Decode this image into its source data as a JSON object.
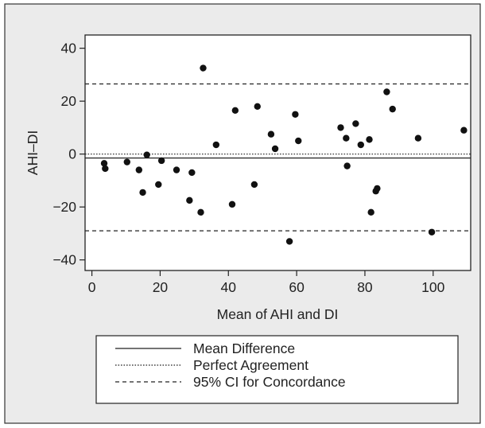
{
  "chart_data": {
    "type": "scatter",
    "xlabel": "Mean of AHI and DI",
    "ylabel": "AHI–DI",
    "xlim": [
      -2,
      111
    ],
    "ylim": [
      -44,
      45
    ],
    "xticks": [
      0,
      20,
      40,
      60,
      80,
      100
    ],
    "yticks": [
      40,
      20,
      0,
      -20,
      -40
    ],
    "xtick_labels": [
      "0",
      "20",
      "40",
      "60",
      "80",
      "100"
    ],
    "ytick_labels": [
      "40",
      "20",
      "0",
      "−20",
      "−40"
    ],
    "grid": false,
    "legend_position": "bottom",
    "reference_lines": [
      {
        "name": "Mean Difference",
        "y": -1.5,
        "style": "solid"
      },
      {
        "name": "Perfect Agreement",
        "y": 0,
        "style": "dotted"
      },
      {
        "name": "95% CI for Concordance",
        "y": 26.5,
        "style": "dashed"
      },
      {
        "name": "95% CI for Concordance",
        "y": -29,
        "style": "dashed"
      }
    ],
    "legend": [
      {
        "label": "Mean Difference",
        "style": "solid"
      },
      {
        "label": "Perfect Agreement",
        "style": "dotted"
      },
      {
        "label": "95% CI for Concordance",
        "style": "dashed"
      }
    ],
    "points": [
      {
        "x": 3.6,
        "y": -3.5
      },
      {
        "x": 3.9,
        "y": -5.5
      },
      {
        "x": 10.3,
        "y": -3.0
      },
      {
        "x": 13.8,
        "y": -6.0
      },
      {
        "x": 14.9,
        "y": -14.5
      },
      {
        "x": 16.1,
        "y": -0.3
      },
      {
        "x": 19.5,
        "y": -11.5
      },
      {
        "x": 20.4,
        "y": -2.5
      },
      {
        "x": 24.8,
        "y": -6.0
      },
      {
        "x": 28.6,
        "y": -17.5
      },
      {
        "x": 29.3,
        "y": -7.0
      },
      {
        "x": 31.9,
        "y": -22.0
      },
      {
        "x": 32.6,
        "y": 32.5
      },
      {
        "x": 36.4,
        "y": 3.5
      },
      {
        "x": 41.1,
        "y": -19.0
      },
      {
        "x": 42.0,
        "y": 16.5
      },
      {
        "x": 47.6,
        "y": -11.5
      },
      {
        "x": 48.5,
        "y": 18.0
      },
      {
        "x": 52.5,
        "y": 7.5
      },
      {
        "x": 53.7,
        "y": 2.0
      },
      {
        "x": 57.9,
        "y": -33.0
      },
      {
        "x": 59.6,
        "y": 15.0
      },
      {
        "x": 60.5,
        "y": 5.0
      },
      {
        "x": 72.9,
        "y": 10.0
      },
      {
        "x": 74.5,
        "y": 6.0
      },
      {
        "x": 74.8,
        "y": -4.5
      },
      {
        "x": 77.3,
        "y": 11.5
      },
      {
        "x": 78.8,
        "y": 3.5
      },
      {
        "x": 81.3,
        "y": 5.5
      },
      {
        "x": 81.8,
        "y": -22.0
      },
      {
        "x": 83.2,
        "y": -14.0
      },
      {
        "x": 83.6,
        "y": -13.0
      },
      {
        "x": 86.4,
        "y": 23.5
      },
      {
        "x": 88.1,
        "y": 17.0
      },
      {
        "x": 95.6,
        "y": 6.0
      },
      {
        "x": 99.6,
        "y": -29.5
      },
      {
        "x": 109.0,
        "y": 9.0
      }
    ]
  }
}
